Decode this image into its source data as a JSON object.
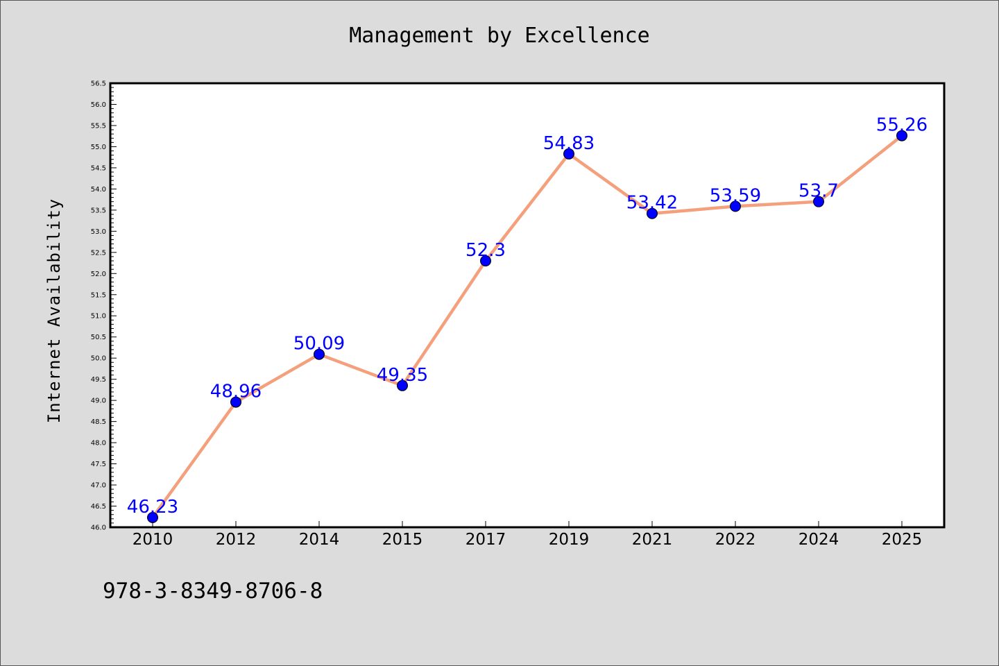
{
  "chart_data": {
    "type": "line",
    "title": "Management by Excellence",
    "xlabel": "",
    "ylabel": "Internet Availability",
    "categories": [
      "2010",
      "2012",
      "2014",
      "2015",
      "2017",
      "2019",
      "2021",
      "2022",
      "2024",
      "2025"
    ],
    "values": [
      46.23,
      48.96,
      50.09,
      49.35,
      52.3,
      54.83,
      53.42,
      53.59,
      53.7,
      55.26
    ],
    "data_labels": [
      "46.23",
      "48.96",
      "50.09",
      "49.35",
      "52.3",
      "54.83",
      "53.42",
      "53.59",
      "53.7",
      "55.26"
    ],
    "ylim": [
      46.0,
      56.5
    ],
    "y_major_step": 0.5,
    "grid": false,
    "line_color": "#f4a07c",
    "marker_color": "#0000ff",
    "label_color": "#0000ff"
  },
  "footer_text": "978-3-8349-8706-8"
}
